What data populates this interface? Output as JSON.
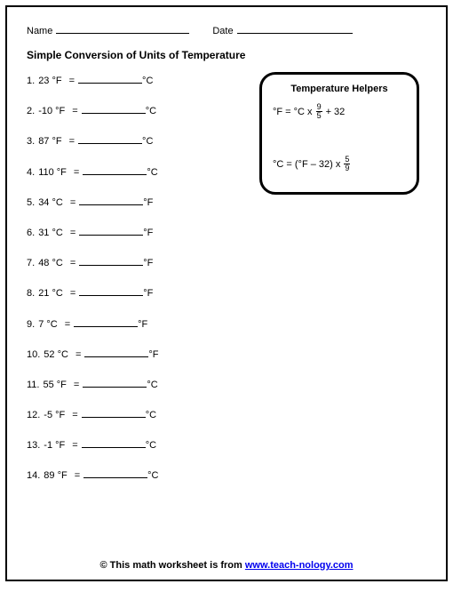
{
  "header": {
    "name_label": "Name",
    "date_label": "Date",
    "name_line_width": 150,
    "date_line_width": 130
  },
  "title": "Simple Conversion of Units of Temperature",
  "blank_width": 72,
  "problems": [
    {
      "n": "1.",
      "value": "23",
      "from": "°F",
      "to": "°C"
    },
    {
      "n": "2.",
      "value": "-10",
      "from": "°F",
      "to": "°C"
    },
    {
      "n": "3.",
      "value": "87",
      "from": "°F",
      "to": "°C"
    },
    {
      "n": "4.",
      "value": "110",
      "from": "°F",
      "to": "°C"
    },
    {
      "n": "5.",
      "value": "34",
      "from": "°C",
      "to": "°F"
    },
    {
      "n": "6.",
      "value": "31",
      "from": "°C",
      "to": "°F"
    },
    {
      "n": "7.",
      "value": "48",
      "from": "°C",
      "to": "°F"
    },
    {
      "n": "8.",
      "value": "21",
      "from": "°C",
      "to": "°F"
    },
    {
      "n": "9.",
      "value": "7",
      "from": "°C",
      "to": "°F"
    },
    {
      "n": "10.",
      "value": "52",
      "from": "°C",
      "to": "°F"
    },
    {
      "n": "11.",
      "value": "55",
      "from": "°F",
      "to": "°C"
    },
    {
      "n": "12.",
      "value": "-5",
      "from": "°F",
      "to": "°C"
    },
    {
      "n": "13.",
      "value": "-1",
      "from": "°F",
      "to": "°C"
    },
    {
      "n": "14.",
      "value": "89",
      "from": "°F",
      "to": "°C"
    }
  ],
  "helper": {
    "title": "Temperature Helpers",
    "formula1_prefix": "°F = °C x",
    "formula1_num": "9",
    "formula1_den": "5",
    "formula1_suffix": "+ 32",
    "formula2_prefix": "°C = (°F – 32) x",
    "formula2_num": "5",
    "formula2_den": "9"
  },
  "footer": {
    "prefix": "© This math worksheet is from ",
    "link_text": "www.teach-nology.com"
  },
  "colors": {
    "text": "#000000",
    "background": "#ffffff",
    "link": "#0000ee",
    "border": "#000000"
  }
}
